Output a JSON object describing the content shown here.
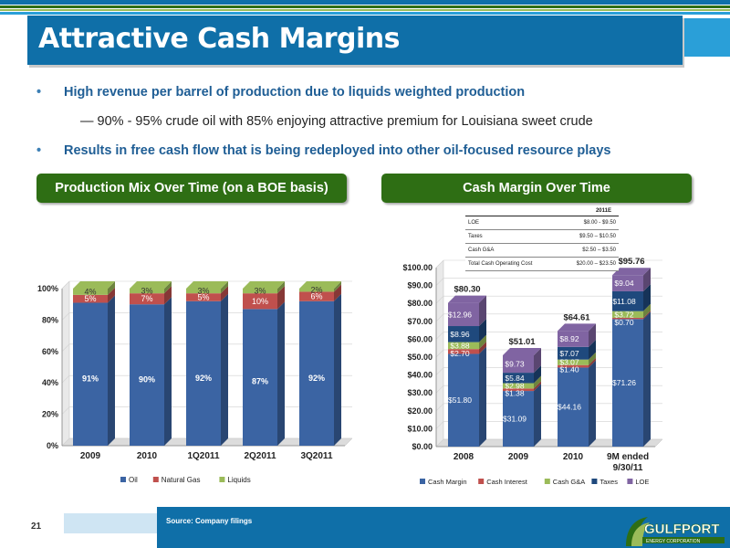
{
  "slide": {
    "title": "Attractive Cash Margins",
    "page_number": "21",
    "source": "Source: Company filings"
  },
  "bullets": [
    {
      "text": "High revenue per barrel of production due to liquids weighted production",
      "level": 1
    },
    {
      "text": "— 90% - 95% crude oil with 85% enjoying attractive premium for Louisiana sweet crude",
      "level": 2
    },
    {
      "text": "Results in free cash flow that is being redeployed into other oil-focused resource plays",
      "level": 1
    }
  ],
  "logo": {
    "text": "GULFPORT",
    "subtext": "ENERGY CORPORATION"
  },
  "colors": {
    "brand_blue": "#0f6fa8",
    "light_blue": "#2a9fd8",
    "pill_green": "#2e6e14"
  },
  "cost_table": {
    "header": "2011E",
    "rows": [
      {
        "label": "LOE",
        "value": "$8.00 - $9.50"
      },
      {
        "label": "Taxes",
        "value": "$9.50 – $10.50"
      },
      {
        "label": "Cash G&A",
        "value": "$2.50 – $3.50"
      },
      {
        "label": "Total Cash Operating Cost",
        "value": "$20.00 – $23.50"
      }
    ]
  },
  "chart_data": [
    {
      "type": "bar",
      "stacked": true,
      "title": "Production Mix Over Time (on a BOE basis)",
      "categories": [
        "2009",
        "2010",
        "1Q2011",
        "2Q2011",
        "3Q2011"
      ],
      "series": [
        {
          "name": "Oil",
          "color": "#3b64a3",
          "values": [
            91,
            90,
            92,
            87,
            92
          ],
          "labels": [
            "91%",
            "90%",
            "92%",
            "87%",
            "92%"
          ]
        },
        {
          "name": "Natural Gas",
          "color": "#c0504d",
          "values": [
            5,
            7,
            5,
            10,
            6
          ],
          "labels": [
            "5%",
            "7%",
            "5%",
            "10%",
            "6%"
          ]
        },
        {
          "name": "Liquids",
          "color": "#9bbb59",
          "values": [
            4,
            3,
            3,
            3,
            2
          ],
          "labels": [
            "4%",
            "3%",
            "3%",
            "3%",
            "2%"
          ]
        }
      ],
      "ylim": [
        0,
        100
      ],
      "yticks": [
        "0%",
        "20%",
        "40%",
        "60%",
        "80%",
        "100%"
      ],
      "legend": "bottom"
    },
    {
      "type": "bar",
      "stacked": true,
      "title": "Cash Margin Over Time",
      "categories": [
        "2008",
        "2009",
        "2010",
        "9M ended 9/30/11"
      ],
      "totals": [
        "$80.30",
        "$51.01",
        "$64.61",
        "$95.76"
      ],
      "series": [
        {
          "name": "Cash Margin",
          "color": "#3b64a3",
          "values": [
            51.8,
            31.09,
            44.16,
            71.26
          ],
          "labels": [
            "$51.80",
            "$31.09",
            "$44.16",
            "$71.26"
          ]
        },
        {
          "name": "Cash Interest",
          "color": "#c0504d",
          "values": [
            2.7,
            1.38,
            1.4,
            0.7
          ],
          "labels": [
            "$2.70",
            "$1.38",
            "$1.40",
            "$0.70"
          ]
        },
        {
          "name": "Cash G&A",
          "color": "#9bbb59",
          "values": [
            3.88,
            2.98,
            3.07,
            3.72
          ],
          "labels": [
            "$3.88",
            "$2.98",
            "$3.07",
            "$3.72"
          ]
        },
        {
          "name": "Taxes",
          "color": "#1f497d",
          "values": [
            8.96,
            5.84,
            7.07,
            11.08
          ],
          "labels": [
            "$8.96",
            "$5.84",
            "$7.07",
            "$11.08"
          ]
        },
        {
          "name": "LOE",
          "color": "#8064a2",
          "values": [
            12.96,
            9.73,
            8.92,
            9.04
          ],
          "labels": [
            "$12.96",
            "$9.73",
            "$8.92",
            "$9.04"
          ]
        }
      ],
      "ylim": [
        0,
        100
      ],
      "yticks": [
        "$0.00",
        "$10.00",
        "$20.00",
        "$30.00",
        "$40.00",
        "$50.00",
        "$60.00",
        "$70.00",
        "$80.00",
        "$90.00",
        "$100.00"
      ],
      "legend": "bottom"
    }
  ]
}
